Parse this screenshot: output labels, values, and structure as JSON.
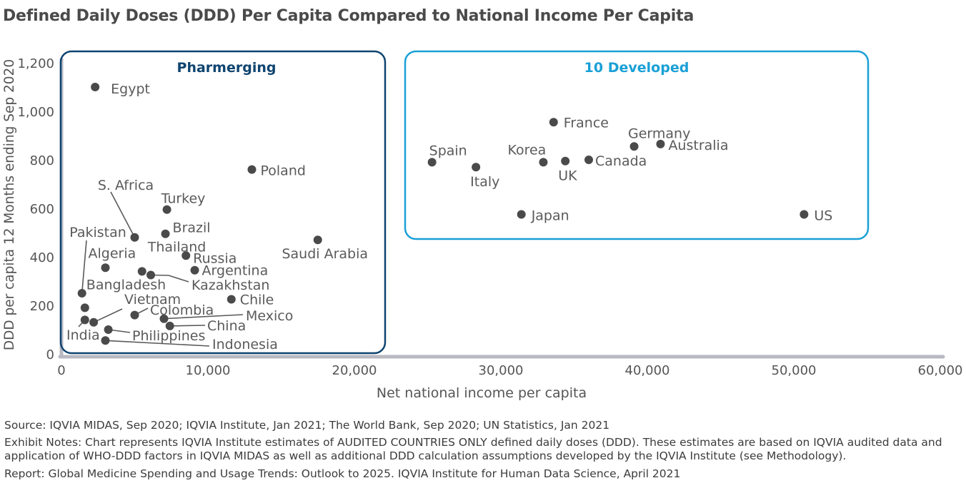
{
  "title": "Defined Daily Doses (DDD) Per Capita Compared to National Income Per Capita",
  "footnotes": {
    "source": "Source: IQVIA MIDAS, Sep 2020; IQVIA Institute, Jan 2021; The World Bank, Sep 2020; UN Statistics, Jan 2021",
    "notes": "Exhibit Notes: Chart represents IQVIA Institute estimates of AUDITED COUNTRIES ONLY defined daily doses (DDD). These estimates are based on IQVIA audited data and application of WHO-DDD factors in IQVIA MIDAS as well as additional DDD calculation assumptions developed by the IQVIA Institute (see Methodology).",
    "report": "Report: Global Medicine Spending and Usage Trends: Outlook to 2025. IQVIA Institute for Human Data Science, April 2021"
  },
  "chart_data": {
    "type": "scatter",
    "title": "Defined Daily Doses (DDD) Per Capita Compared to National Income Per Capita",
    "xlabel": "Net national income per capita",
    "ylabel": "DDD per capita 12 Months ending Sep 2020",
    "xlim": [
      0,
      60000
    ],
    "ylim": [
      0,
      1200
    ],
    "x_ticks": [
      0,
      10000,
      20000,
      30000,
      40000,
      50000,
      60000
    ],
    "x_tick_labels": [
      "0",
      "10,000",
      "20,000",
      "30,000",
      "40,000",
      "50,000",
      "60,000"
    ],
    "y_ticks": [
      0,
      200,
      400,
      600,
      800,
      1000,
      1200
    ],
    "y_tick_labels": [
      "0",
      "200",
      "400",
      "600",
      "800",
      "1,000",
      "1,200"
    ],
    "grid": false,
    "groups": [
      {
        "name": "Pharmerging",
        "color": "#0f4470"
      },
      {
        "name": "10 Developed",
        "color": "#1aa0d6"
      }
    ],
    "point_color": "#4a4a4a",
    "points": [
      {
        "label": "Egypt",
        "x": 2300,
        "y": 1100,
        "group": "Pharmerging"
      },
      {
        "label": "Poland",
        "x": 13000,
        "y": 760,
        "group": "Pharmerging"
      },
      {
        "label": "Turkey",
        "x": 7200,
        "y": 595,
        "group": "Pharmerging"
      },
      {
        "label": "S. Africa",
        "x": 5000,
        "y": 480,
        "group": "Pharmerging"
      },
      {
        "label": "Brazil",
        "x": 7100,
        "y": 495,
        "group": "Pharmerging"
      },
      {
        "label": "Saudi Arabia",
        "x": 17500,
        "y": 470,
        "group": "Pharmerging"
      },
      {
        "label": "Pakistan",
        "x": 1400,
        "y": 250,
        "group": "Pharmerging"
      },
      {
        "label": "Algeria",
        "x": 3000,
        "y": 355,
        "group": "Pharmerging"
      },
      {
        "label": "Thailand",
        "x": 5500,
        "y": 340,
        "group": "Pharmerging"
      },
      {
        "label": "Russia",
        "x": 8500,
        "y": 405,
        "group": "Pharmerging"
      },
      {
        "label": "Argentina",
        "x": 9100,
        "y": 345,
        "group": "Pharmerging"
      },
      {
        "label": "Kazakhstan",
        "x": 6100,
        "y": 325,
        "group": "Pharmerging"
      },
      {
        "label": "Bangladesh",
        "x": 1600,
        "y": 190,
        "group": "Pharmerging"
      },
      {
        "label": "Chile",
        "x": 11600,
        "y": 225,
        "group": "Pharmerging"
      },
      {
        "label": "Vietnam",
        "x": 2200,
        "y": 130,
        "group": "Pharmerging"
      },
      {
        "label": "Colombia",
        "x": 5000,
        "y": 160,
        "group": "Pharmerging"
      },
      {
        "label": "Mexico",
        "x": 7000,
        "y": 145,
        "group": "Pharmerging"
      },
      {
        "label": "India",
        "x": 1600,
        "y": 140,
        "group": "Pharmerging"
      },
      {
        "label": "China",
        "x": 7400,
        "y": 115,
        "group": "Pharmerging"
      },
      {
        "label": "Philippines",
        "x": 3200,
        "y": 100,
        "group": "Pharmerging"
      },
      {
        "label": "Indonesia",
        "x": 3000,
        "y": 55,
        "group": "Pharmerging"
      },
      {
        "label": "France",
        "x": 33600,
        "y": 955,
        "group": "10 Developed"
      },
      {
        "label": "Germany",
        "x": 39100,
        "y": 855,
        "group": "10 Developed"
      },
      {
        "label": "Australia",
        "x": 40900,
        "y": 865,
        "group": "10 Developed"
      },
      {
        "label": "Spain",
        "x": 25300,
        "y": 790,
        "group": "10 Developed"
      },
      {
        "label": "Korea",
        "x": 32900,
        "y": 790,
        "group": "10 Developed"
      },
      {
        "label": "UK",
        "x": 34400,
        "y": 795,
        "group": "10 Developed"
      },
      {
        "label": "Canada",
        "x": 36000,
        "y": 800,
        "group": "10 Developed"
      },
      {
        "label": "Italy",
        "x": 28300,
        "y": 770,
        "group": "10 Developed"
      },
      {
        "label": "Japan",
        "x": 31400,
        "y": 575,
        "group": "10 Developed"
      },
      {
        "label": "US",
        "x": 50700,
        "y": 575,
        "group": "10 Developed"
      }
    ]
  }
}
